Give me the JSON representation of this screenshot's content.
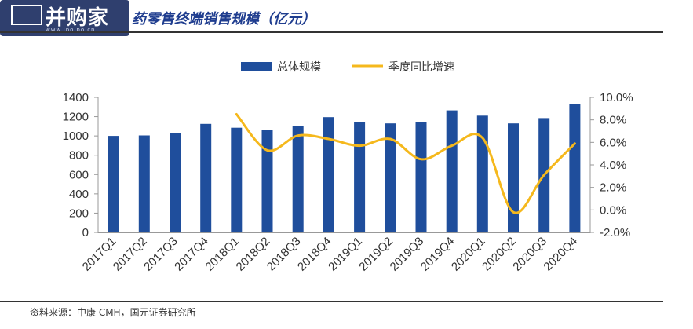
{
  "watermark": {
    "text": "并购家",
    "url": "www.ipoipo.cn"
  },
  "header": {
    "title": "药零售终端销售规模（亿元）"
  },
  "source": "资料来源：中康 CMH，国元证券研究所",
  "colors": {
    "bar": "#1f4e9c",
    "line": "#f5b81c",
    "title": "#1f3d8f"
  },
  "chart_data": {
    "type": "bar",
    "categories": [
      "2017Q1",
      "2017Q2",
      "2017Q3",
      "2017Q4",
      "2018Q1",
      "2018Q2",
      "2018Q3",
      "2018Q4",
      "2019Q1",
      "2019Q2",
      "2019Q3",
      "2019Q4",
      "2020Q1",
      "2020Q2",
      "2020Q3",
      "2020Q4"
    ],
    "series": [
      {
        "name": "总体规模",
        "type": "bar",
        "axis": "left",
        "values": [
          1000,
          1005,
          1030,
          1125,
          1085,
          1060,
          1100,
          1195,
          1145,
          1130,
          1145,
          1265,
          1210,
          1130,
          1185,
          1335
        ]
      },
      {
        "name": "季度同比增速",
        "type": "line",
        "axis": "right",
        "values": [
          null,
          null,
          null,
          null,
          8.5,
          5.3,
          6.6,
          6.3,
          5.7,
          6.3,
          4.5,
          5.7,
          6.4,
          -0.2,
          3.1,
          5.9
        ]
      }
    ],
    "y_left": {
      "ylim": [
        0,
        1400
      ],
      "ticks": [
        "0",
        "200",
        "400",
        "600",
        "800",
        "1000",
        "1200",
        "1400"
      ]
    },
    "y_right": {
      "ylim": [
        -2,
        10
      ],
      "ticks": [
        "-2.0%",
        "0.0%",
        "2.0%",
        "4.0%",
        "6.0%",
        "8.0%",
        "10.0%"
      ]
    },
    "grid": false,
    "legend": "top-center"
  }
}
